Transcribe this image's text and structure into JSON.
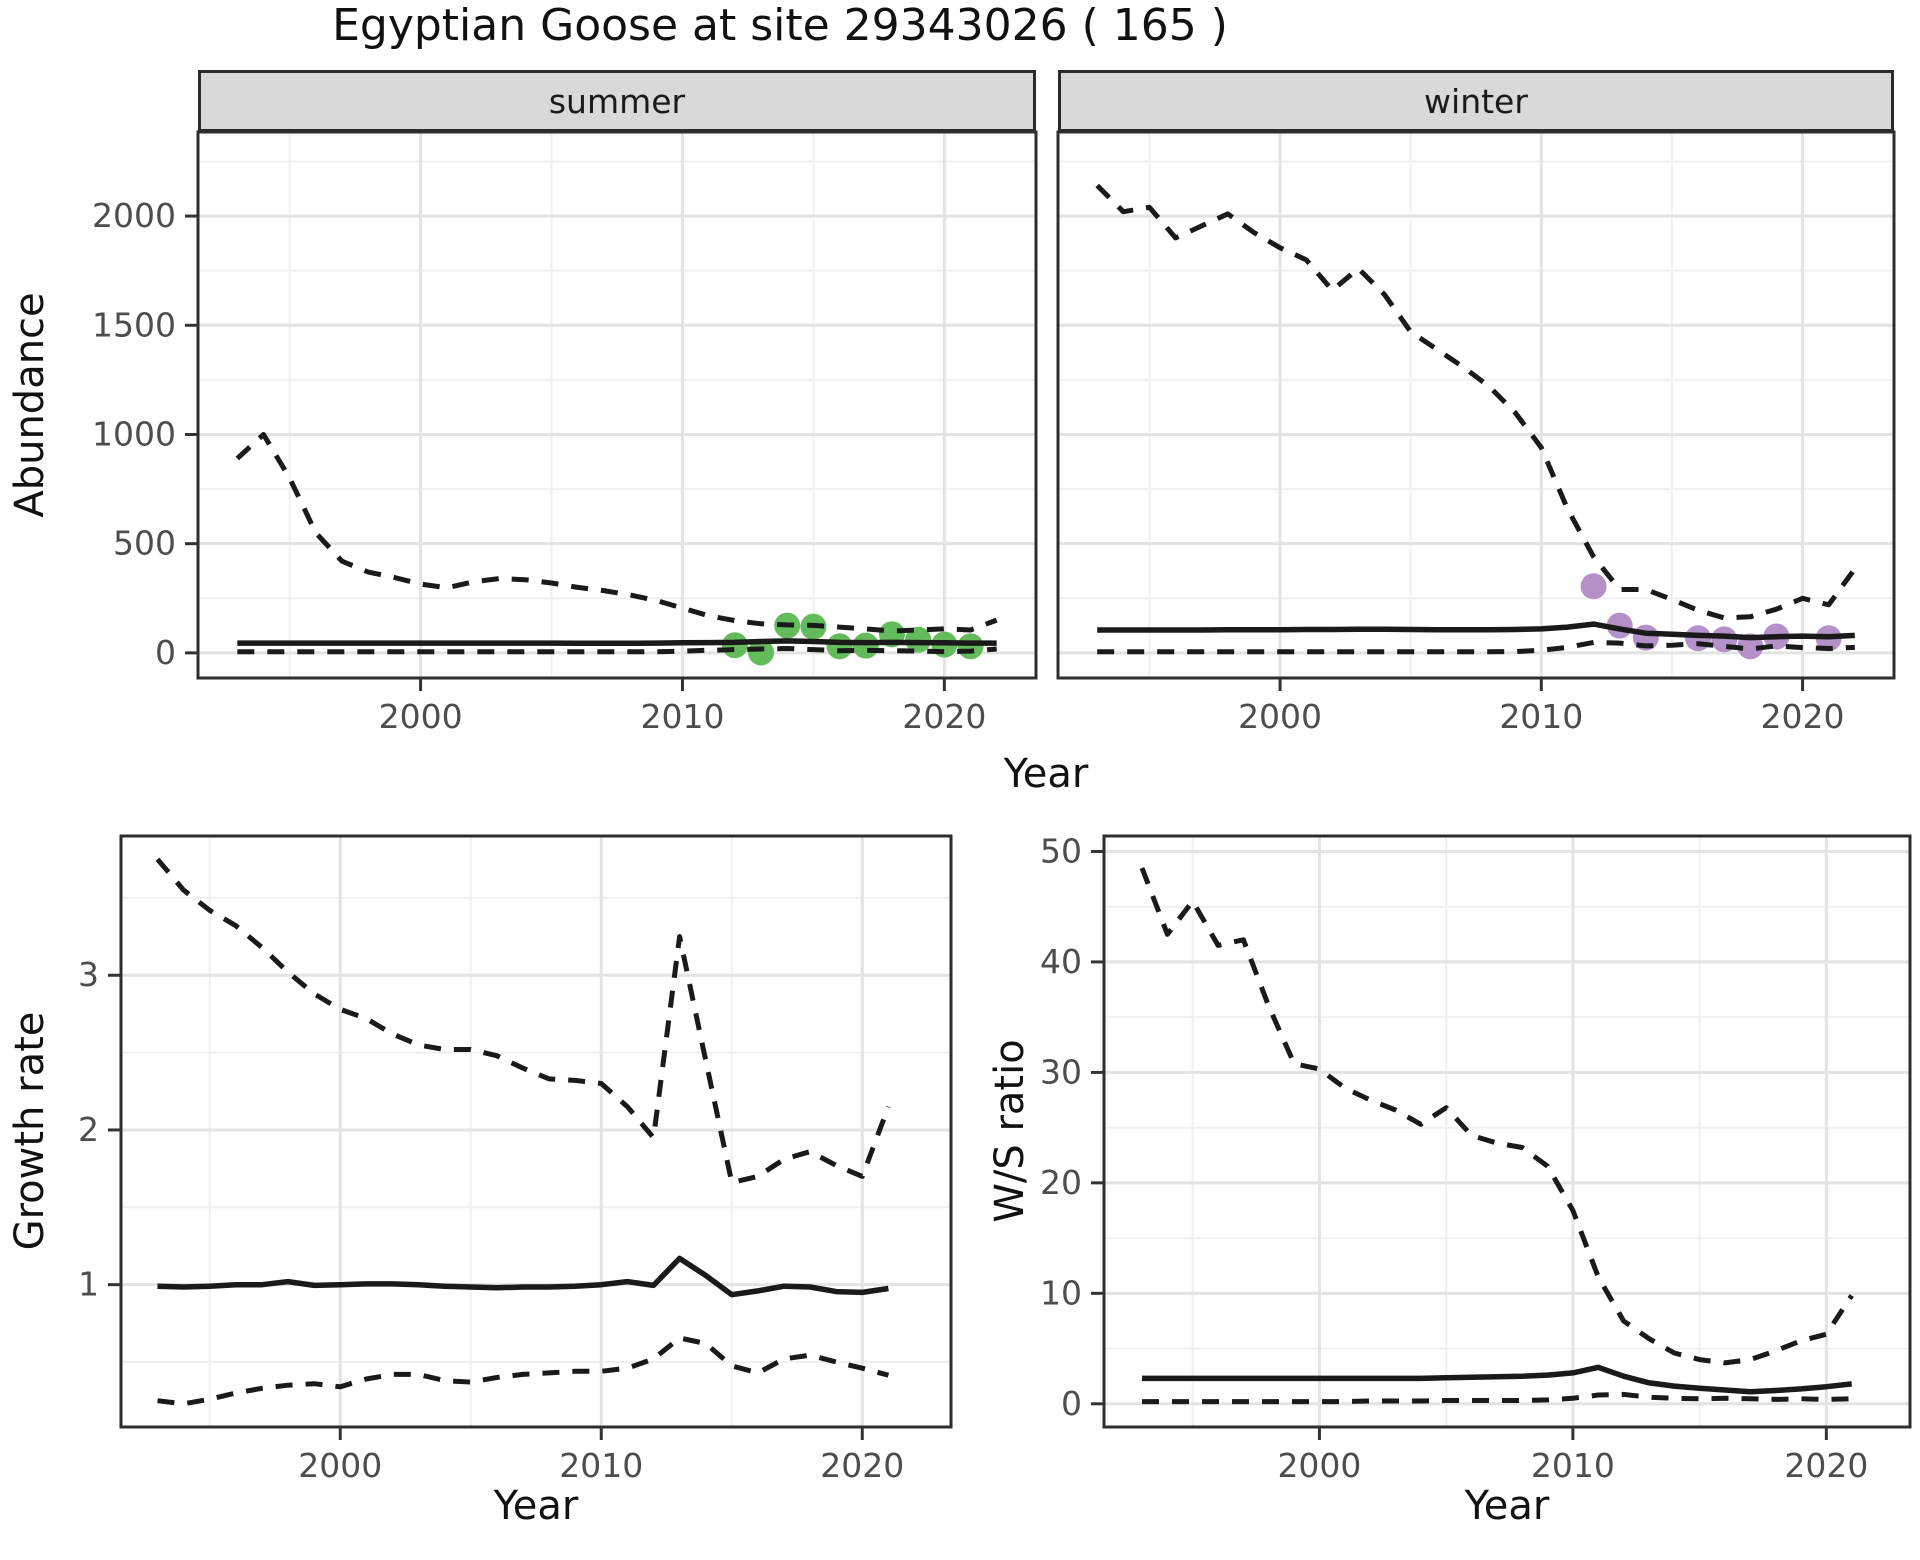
{
  "title": "Egyptian Goose at site 29343026 ( 165 )",
  "colors": {
    "summer_point": "#64BB5C",
    "winter_point": "#B491C8",
    "line": "#1A1A1A",
    "tick_label": "#4D4D4D",
    "axis_title": "#111111",
    "strip_bg": "#D9D9D9",
    "panel_border": "#2E2E2E",
    "grid_major": "#E3E3E3",
    "grid_minor": "#F0F0F0"
  },
  "facets": [
    {
      "id": "summer",
      "label": "summer"
    },
    {
      "id": "winter",
      "label": "winter"
    }
  ],
  "axes": {
    "abundance_label": "Abundance",
    "growth_label": "Growth rate",
    "ws_label": "W/S ratio",
    "year_label_top": "Year",
    "year_label_bottom_left": "Year",
    "year_label_bottom_right": "Year"
  },
  "chart_data": [
    {
      "id": "abundance-summer",
      "type": "line",
      "facet": "summer",
      "title": "",
      "xlabel": "Year",
      "ylabel": "Abundance",
      "xlim": [
        1991.5,
        2023.5
      ],
      "ylim": [
        -115,
        2385
      ],
      "xticks": [
        2000,
        2010,
        2020
      ],
      "yticks": [
        0,
        500,
        1000,
        1500,
        2000
      ],
      "show_y_tick_labels": true,
      "x": [
        1993,
        1994,
        1995,
        1996,
        1997,
        1998,
        1999,
        2000,
        2001,
        2002,
        2003,
        2004,
        2005,
        2006,
        2007,
        2008,
        2009,
        2010,
        2011,
        2012,
        2013,
        2014,
        2015,
        2016,
        2017,
        2018,
        2019,
        2020,
        2021,
        2022
      ],
      "series": [
        {
          "name": "upper-ci",
          "style": "dashed",
          "values": [
            890,
            1000,
            800,
            550,
            420,
            370,
            345,
            315,
            298,
            325,
            340,
            335,
            320,
            300,
            285,
            265,
            240,
            205,
            170,
            148,
            133,
            128,
            126,
            118,
            110,
            100,
            105,
            110,
            105,
            150
          ]
        },
        {
          "name": "estimate",
          "style": "solid",
          "values": [
            45,
            45,
            45,
            45,
            45,
            45,
            45,
            45,
            45,
            45,
            45,
            45,
            45,
            44,
            44,
            44,
            45,
            46,
            47,
            48,
            52,
            55,
            52,
            48,
            47,
            48,
            47,
            46,
            45,
            45
          ]
        },
        {
          "name": "lower-ci",
          "style": "dashed",
          "values": [
            5,
            5,
            5,
            5,
            5,
            5,
            5,
            5,
            5,
            5,
            5,
            5,
            5,
            5,
            5,
            5,
            5,
            8,
            12,
            15,
            18,
            20,
            15,
            10,
            12,
            10,
            8,
            6,
            8,
            18
          ]
        }
      ],
      "points": {
        "name": "observed-count",
        "color_key": "summer_point",
        "x": [
          2012,
          2013,
          2014,
          2015,
          2016,
          2017,
          2018,
          2019,
          2020,
          2021
        ],
        "y": [
          35,
          2,
          125,
          120,
          30,
          33,
          85,
          60,
          38,
          30
        ]
      }
    },
    {
      "id": "abundance-winter",
      "type": "line",
      "facet": "winter",
      "title": "",
      "xlabel": "Year",
      "ylabel": "Abundance",
      "xlim": [
        1991.5,
        2023.5
      ],
      "ylim": [
        -115,
        2385
      ],
      "xticks": [
        2000,
        2010,
        2020
      ],
      "yticks": [
        0,
        500,
        1000,
        1500,
        2000
      ],
      "show_y_tick_labels": false,
      "x": [
        1993,
        1994,
        1995,
        1996,
        1997,
        1998,
        1999,
        2000,
        2001,
        2002,
        2003,
        2004,
        2005,
        2006,
        2007,
        2008,
        2009,
        2010,
        2011,
        2012,
        2013,
        2014,
        2015,
        2016,
        2017,
        2018,
        2019,
        2020,
        2021,
        2022
      ],
      "series": [
        {
          "name": "upper-ci",
          "style": "dashed",
          "values": [
            2140,
            2020,
            2040,
            1900,
            1955,
            2010,
            1925,
            1855,
            1800,
            1660,
            1760,
            1640,
            1470,
            1390,
            1310,
            1220,
            1100,
            940,
            660,
            440,
            290,
            290,
            245,
            195,
            160,
            165,
            200,
            250,
            220,
            385
          ]
        },
        {
          "name": "estimate",
          "style": "solid",
          "values": [
            105,
            105,
            105,
            105,
            105,
            106,
            106,
            106,
            107,
            107,
            108,
            108,
            107,
            106,
            106,
            106,
            107,
            110,
            118,
            132,
            110,
            90,
            85,
            80,
            77,
            70,
            74,
            77,
            74,
            80
          ]
        },
        {
          "name": "lower-ci",
          "style": "dashed",
          "values": [
            5,
            5,
            5,
            5,
            5,
            5,
            5,
            5,
            5,
            5,
            5,
            5,
            5,
            5,
            5,
            5,
            6,
            12,
            25,
            48,
            45,
            32,
            35,
            42,
            30,
            18,
            32,
            24,
            20,
            25
          ]
        }
      ],
      "points": {
        "name": "observed-count",
        "color_key": "winter_point",
        "x": [
          2012,
          2013,
          2014,
          2016,
          2017,
          2018,
          2019,
          2021
        ],
        "y": [
          305,
          125,
          70,
          67,
          62,
          30,
          75,
          67
        ]
      }
    },
    {
      "id": "growth-rate",
      "type": "line",
      "facet": "",
      "title": "",
      "xlabel": "Year",
      "ylabel": "Growth rate",
      "xlim": [
        1991.6,
        2023.4
      ],
      "ylim": [
        0.08,
        3.9
      ],
      "xticks": [
        2000,
        2010,
        2020
      ],
      "yticks": [
        1,
        2,
        3
      ],
      "show_y_tick_labels": true,
      "x": [
        1993,
        1994,
        1995,
        1996,
        1997,
        1998,
        1999,
        2000,
        2001,
        2002,
        2003,
        2004,
        2005,
        2006,
        2007,
        2008,
        2009,
        2010,
        2011,
        2012,
        2013,
        2014,
        2015,
        2016,
        2017,
        2018,
        2019,
        2020,
        2021
      ],
      "series": [
        {
          "name": "upper-ci",
          "style": "dashed",
          "values": [
            3.75,
            3.55,
            3.42,
            3.32,
            3.18,
            3.02,
            2.88,
            2.78,
            2.72,
            2.62,
            2.55,
            2.52,
            2.52,
            2.48,
            2.4,
            2.33,
            2.32,
            2.3,
            2.15,
            1.95,
            3.25,
            2.45,
            1.66,
            1.7,
            1.81,
            1.86,
            1.77,
            1.7,
            2.15
          ]
        },
        {
          "name": "estimate",
          "style": "solid",
          "values": [
            0.99,
            0.985,
            0.99,
            1.0,
            1.0,
            1.02,
            0.995,
            1.0,
            1.005,
            1.005,
            1.0,
            0.99,
            0.985,
            0.98,
            0.985,
            0.985,
            0.99,
            1.0,
            1.02,
            0.995,
            1.17,
            1.06,
            0.935,
            0.96,
            0.99,
            0.985,
            0.955,
            0.95,
            0.975
          ]
        },
        {
          "name": "lower-ci",
          "style": "dashed",
          "values": [
            0.25,
            0.23,
            0.26,
            0.3,
            0.33,
            0.35,
            0.36,
            0.34,
            0.39,
            0.42,
            0.42,
            0.38,
            0.37,
            0.4,
            0.42,
            0.43,
            0.44,
            0.44,
            0.46,
            0.52,
            0.655,
            0.62,
            0.475,
            0.43,
            0.52,
            0.545,
            0.5,
            0.46,
            0.415
          ]
        }
      ],
      "points": null
    },
    {
      "id": "ws-ratio",
      "type": "line",
      "facet": "",
      "title": "",
      "xlabel": "Year",
      "ylabel": "W/S ratio",
      "xlim": [
        1991.5,
        2023.3
      ],
      "ylim": [
        -2.1,
        51.4
      ],
      "xticks": [
        2000,
        2010,
        2020
      ],
      "yticks": [
        0,
        10,
        20,
        30,
        40,
        50
      ],
      "show_y_tick_labels": true,
      "x": [
        1993,
        1994,
        1995,
        1996,
        1997,
        1998,
        1999,
        2000,
        2001,
        2002,
        2003,
        2004,
        2005,
        2006,
        2007,
        2008,
        2009,
        2010,
        2011,
        2012,
        2013,
        2014,
        2015,
        2016,
        2017,
        2018,
        2019,
        2020,
        2021
      ],
      "series": [
        {
          "name": "upper-ci",
          "style": "dashed",
          "values": [
            48.5,
            42.5,
            45.5,
            41.5,
            42.0,
            36.0,
            30.8,
            30.3,
            28.6,
            27.5,
            26.6,
            25.3,
            26.8,
            24.3,
            23.6,
            23.2,
            21.5,
            17.5,
            11.5,
            7.5,
            5.9,
            4.6,
            4.0,
            3.7,
            4.0,
            4.8,
            5.7,
            6.3,
            9.8
          ]
        },
        {
          "name": "estimate",
          "style": "solid",
          "values": [
            2.3,
            2.3,
            2.3,
            2.3,
            2.3,
            2.3,
            2.3,
            2.3,
            2.3,
            2.3,
            2.3,
            2.3,
            2.35,
            2.4,
            2.45,
            2.5,
            2.6,
            2.8,
            3.3,
            2.5,
            1.9,
            1.6,
            1.4,
            1.25,
            1.1,
            1.2,
            1.35,
            1.55,
            1.8
          ]
        },
        {
          "name": "lower-ci",
          "style": "dashed",
          "values": [
            0.2,
            0.2,
            0.2,
            0.2,
            0.2,
            0.2,
            0.2,
            0.2,
            0.2,
            0.25,
            0.25,
            0.25,
            0.3,
            0.3,
            0.3,
            0.3,
            0.35,
            0.5,
            0.8,
            0.85,
            0.6,
            0.5,
            0.45,
            0.5,
            0.45,
            0.4,
            0.45,
            0.4,
            0.45
          ]
        }
      ],
      "points": null
    }
  ]
}
